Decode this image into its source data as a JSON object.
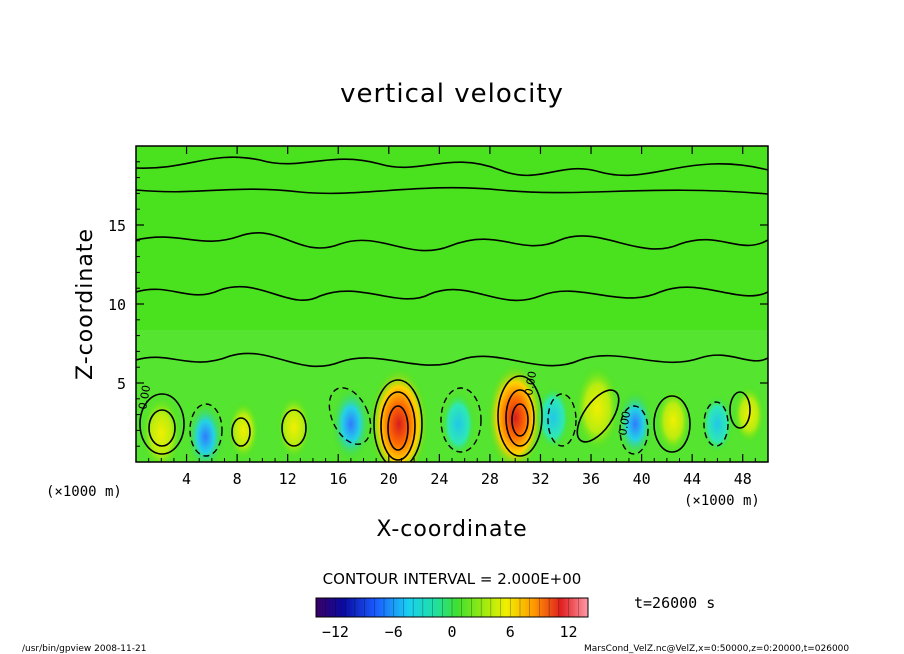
{
  "chart_data": {
    "type": "heatmap",
    "title": "vertical velocity",
    "xlabel": "X-coordinate",
    "ylabel": "Z-coordinate",
    "x_unit_left": "(×1000 m)",
    "x_unit_right": "(×1000 m)",
    "xlim": [
      0,
      50
    ],
    "ylim": [
      0,
      20
    ],
    "x_ticks": [
      4,
      8,
      12,
      16,
      20,
      24,
      28,
      32,
      36,
      40,
      44,
      48
    ],
    "y_ticks": [
      5,
      10,
      15
    ],
    "contour_interval_label": "CONTOUR INTERVAL = 2.000E+00",
    "contour_value_labels": [
      "0.00",
      "0.00",
      "0.00"
    ],
    "colorbar": {
      "range": [
        -14,
        14
      ],
      "tick_labels": [
        "−12",
        "−6",
        "0",
        "6",
        "12"
      ],
      "tick_values": [
        -12,
        -6,
        0,
        6,
        12
      ]
    },
    "time_label": "t=26000 s",
    "cells": [
      {
        "x": 2,
        "z": 1.8,
        "value": 7
      },
      {
        "x": 5.5,
        "z": 1.6,
        "value": -6
      },
      {
        "x": 8.5,
        "z": 2.0,
        "value": 4
      },
      {
        "x": 12.5,
        "z": 2.2,
        "value": 5
      },
      {
        "x": 17,
        "z": 2.4,
        "value": -7
      },
      {
        "x": 20.8,
        "z": 2.4,
        "value": 14
      },
      {
        "x": 25.5,
        "z": 2.4,
        "value": -5
      },
      {
        "x": 30,
        "z": 2.8,
        "value": 13
      },
      {
        "x": 33,
        "z": 2.8,
        "value": -5
      },
      {
        "x": 36.5,
        "z": 3.4,
        "value": 9
      },
      {
        "x": 39.5,
        "z": 2.4,
        "value": -6
      },
      {
        "x": 42.5,
        "z": 2.6,
        "value": 5
      },
      {
        "x": 46,
        "z": 2.4,
        "value": -4
      },
      {
        "x": 48.5,
        "z": 3.0,
        "value": 4
      }
    ]
  },
  "footer": {
    "left": "/usr/bin/gpview  2008-11-21",
    "right": "MarsCond_VelZ.nc@VelZ,x=0:50000,z=0:20000,t=026000"
  }
}
